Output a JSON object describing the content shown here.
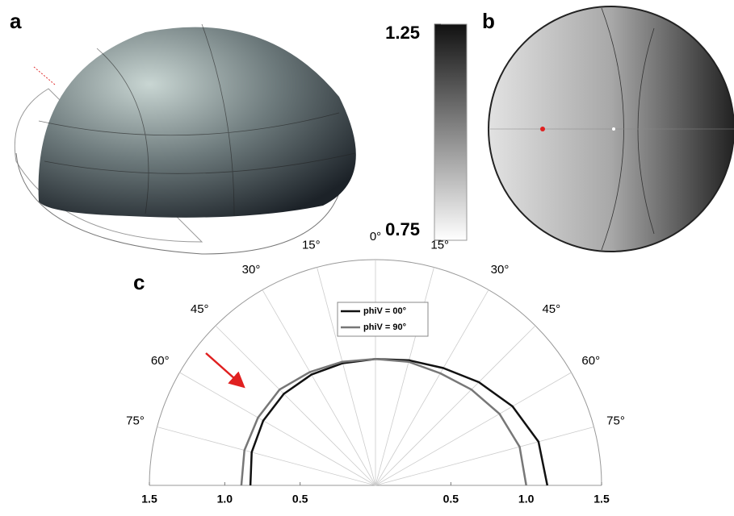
{
  "panel_labels": [
    "a",
    "b",
    "c"
  ],
  "colorbar": {
    "lim": [
      0.75,
      1.25
    ],
    "ticks": [
      0.75,
      1.25
    ]
  },
  "chart_data": {
    "type": "polar",
    "theta": [
      -90,
      -75,
      -60,
      -45,
      -30,
      -15,
      0,
      15,
      30,
      45,
      60,
      75,
      90
    ],
    "series": [
      {
        "name": "phiV = 00°",
        "color": "#111111",
        "values": [
          0.83,
          0.85,
          0.86,
          0.86,
          0.85,
          0.84,
          0.84,
          0.86,
          0.9,
          0.97,
          1.05,
          1.12,
          1.14
        ]
      },
      {
        "name": "phiV = 90°",
        "color": "#777777",
        "values": [
          0.89,
          0.9,
          0.9,
          0.9,
          0.87,
          0.85,
          0.84,
          0.85,
          0.86,
          0.9,
          0.95,
          0.99,
          1.0
        ]
      }
    ],
    "thetalim": [
      -90,
      90
    ],
    "thetaticks": [
      {
        "value": -75,
        "label": "75°"
      },
      {
        "value": -60,
        "label": "60°"
      },
      {
        "value": -45,
        "label": "45°"
      },
      {
        "value": -30,
        "label": "30°"
      },
      {
        "value": -15,
        "label": "15°"
      },
      {
        "value": 0,
        "label": "0°"
      },
      {
        "value": 15,
        "label": "15°"
      },
      {
        "value": 30,
        "label": "30°"
      },
      {
        "value": 45,
        "label": "45°"
      },
      {
        "value": 60,
        "label": "60°"
      },
      {
        "value": 75,
        "label": "75°"
      }
    ],
    "rlim": [
      0,
      1.5
    ],
    "rticks": [
      0.5,
      {
        "value": 1.0,
        "label": "1.0"
      },
      1.5
    ],
    "grid": true,
    "legend": "top"
  }
}
